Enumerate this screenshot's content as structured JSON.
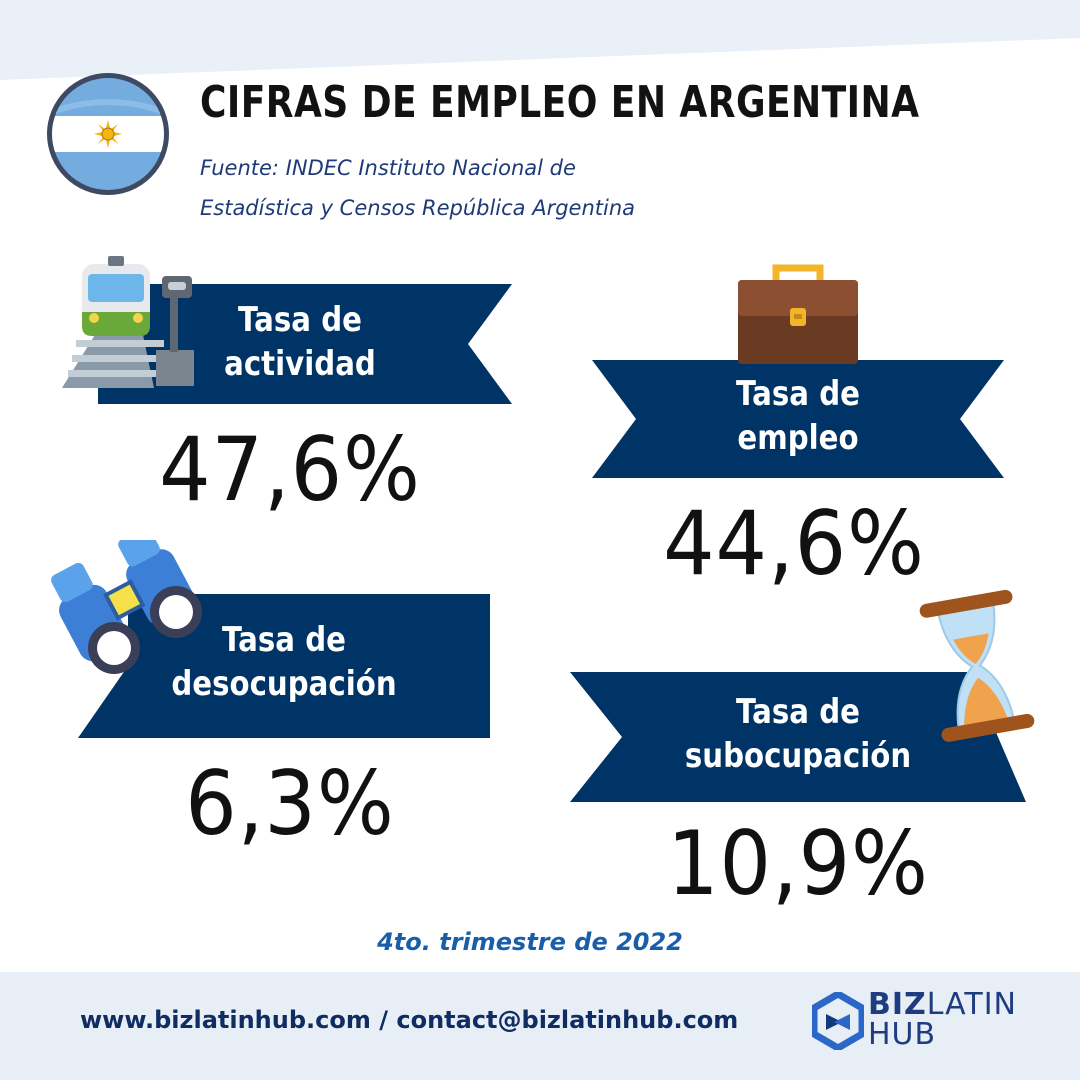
{
  "header": {
    "title": "CIFRAS DE EMPLEO EN ARGENTINA",
    "source_line1": "Fuente: INDEC Instituto Nacional de",
    "source_line2": "Estadística y Censos República Argentina"
  },
  "stats": [
    {
      "label_line1": "Tasa de",
      "label_line2": "actividad",
      "value": "47,6%",
      "icon": "train-icon"
    },
    {
      "label_line1": "Tasa de",
      "label_line2": "empleo",
      "value": "44,6%",
      "icon": "briefcase-icon"
    },
    {
      "label_line1": "Tasa de",
      "label_line2": "desocupación",
      "value": "6,3%",
      "icon": "binoculars-icon"
    },
    {
      "label_line1": "Tasa de",
      "label_line2": "subocupación",
      "value": "10,9%",
      "icon": "hourglass-icon"
    }
  ],
  "period": "4to. trimestre de 2022",
  "footer": {
    "contact": "www.bizlatinhub.com / contact@bizlatinhub.com",
    "logo_biz": "BIZ",
    "logo_latin": "LATIN",
    "logo_hub": "HUB"
  },
  "colors": {
    "banner": "#003466",
    "flag_blue": "#74acdf",
    "sun": "#f6b40e",
    "footer_bg": "#e8eef6",
    "period_text": "#1a5ea8"
  }
}
